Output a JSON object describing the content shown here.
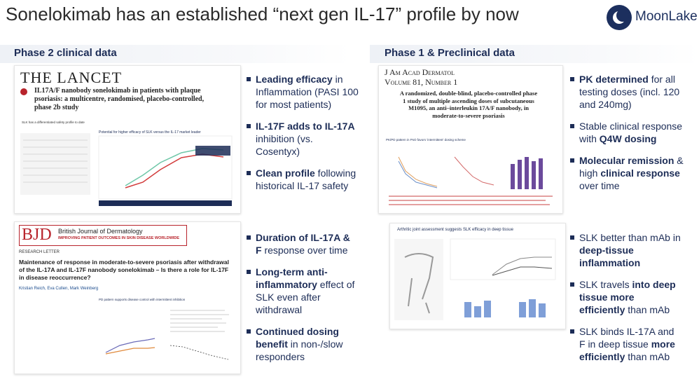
{
  "header": {
    "title": "Sonelokimab has an established “next gen IL-17” profile by now",
    "logo": "MoonLake"
  },
  "left": {
    "heading": "Phase 2 clinical data",
    "lancet": {
      "journal": "THE LANCET",
      "article": "IL17A/F nanobody sonelokimab in patients with plaque psoriasis: a multicentre, randomised, placebo-controlled, phase 2b study",
      "slide_a": "SLK has a differentiated safety profile to date",
      "slide_b": "Potential for higher efficacy of SLK versus the IL-17 market leader"
    },
    "bjd": {
      "logo": "BJD",
      "journal": "British Journal of Dermatology",
      "tagline": "IMPROVING PATIENT OUTCOMES IN SKIN DISEASE WORLDWIDE",
      "kind": "RESEARCH LETTER",
      "article": "Maintenance of response in moderate-to-severe psoriasis after withdrawal of the IL-17A and IL-17F nanobody sonelokimab – Is there a role for IL-17F in disease reoccurrence?",
      "authors": "Kristian Reich, Eva Cullen, Mark Weinberg",
      "slide": "PD pattern supports disease control with intermittent inhibition"
    },
    "bullet_groups": [
      [
        [
          {
            "text": "Leading efficacy",
            "bold": true
          },
          {
            "text": " in Inflammation (PASI 100 for most patients)",
            "bold": false
          }
        ],
        [
          {
            "text": "IL-17F adds to IL-17A",
            "bold": true
          },
          {
            "text": " inhibition (vs. Cosentyx)",
            "bold": false
          }
        ],
        [
          {
            "text": "Clean profile",
            "bold": true
          },
          {
            "text": " following historical IL-17 safety",
            "bold": false
          }
        ]
      ],
      [
        [
          {
            "text": "Duration of IL-17A & F",
            "bold": true
          },
          {
            "text": " response over time",
            "bold": false
          }
        ],
        [
          {
            "text": "Long-term anti-inflammatory",
            "bold": true
          },
          {
            "text": " effect of SLK even after withdrawal",
            "bold": false
          }
        ],
        [
          {
            "text": "Continued dosing benefit",
            "bold": true
          },
          {
            "text": " in non-/slow responders",
            "bold": false
          }
        ]
      ]
    ]
  },
  "right": {
    "heading": "Phase 1 & Preclinical data",
    "jaad": {
      "journal": "J Am Acad Dermatol",
      "volume": "Volume 81, Number 1",
      "article": "A randomized, double-blind, placebo-controlled phase 1 study of multiple ascending doses of subcutaneous M1095, an anti–interleukin 17A/F nanobody, in moderate-to-severe psoriasis",
      "slide": "PK/PD pattern in PsO favors ‘intermittent’ dosing scheme"
    },
    "arthritis": {
      "slide": "Arthritic joint assessment suggests SLK efficacy in deep tissue"
    },
    "bullet_groups": [
      [
        [
          {
            "text": "PK determined",
            "bold": true
          },
          {
            "text": " for all testing doses (incl. 120 and 240mg)",
            "bold": false
          }
        ],
        [
          {
            "text": "Stable clinical response with ",
            "bold": false
          },
          {
            "text": "Q4W dosing",
            "bold": true
          }
        ],
        [
          {
            "text": "Molecular remission",
            "bold": true
          },
          {
            "text": " & high ",
            "bold": false
          },
          {
            "text": "clinical response",
            "bold": true
          },
          {
            "text": " over time",
            "bold": false
          }
        ]
      ],
      [
        [
          {
            "text": "SLK better than mAb in ",
            "bold": false
          },
          {
            "text": "deep-tissue inflammation",
            "bold": true
          }
        ],
        [
          {
            "text": "SLK travels ",
            "bold": false
          },
          {
            "text": "into deep tissue more efficiently",
            "bold": true
          },
          {
            "text": " than mAb",
            "bold": false
          }
        ],
        [
          {
            "text": "SLK binds IL-17A and F in deep tissue ",
            "bold": false
          },
          {
            "text": "more efficiently",
            "bold": true
          },
          {
            "text": " than mAb",
            "bold": false
          }
        ]
      ]
    ]
  }
}
